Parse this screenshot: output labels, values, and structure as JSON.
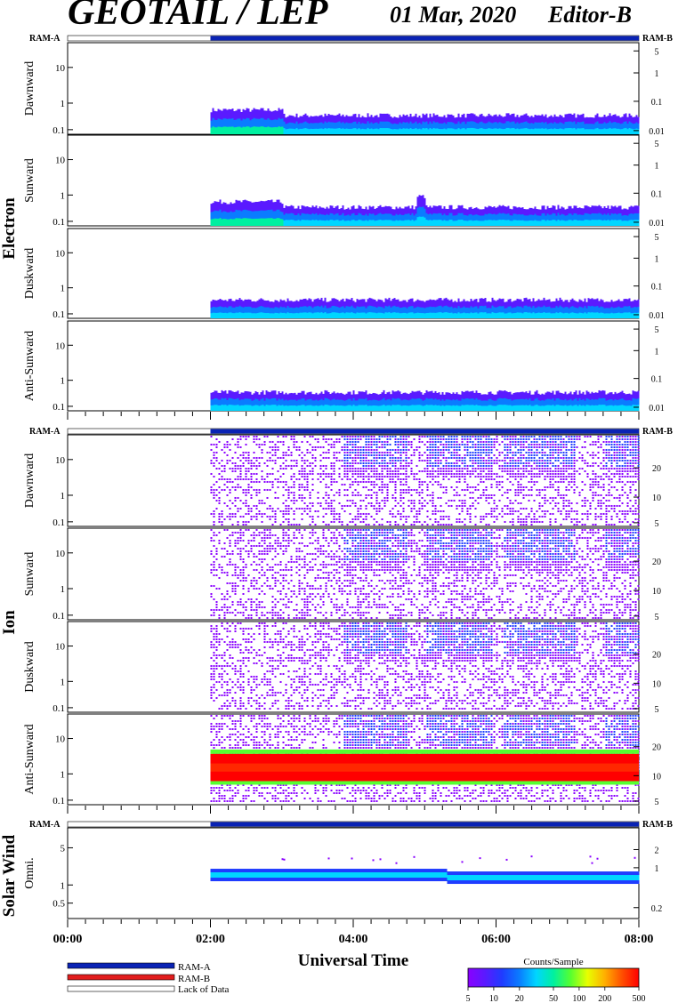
{
  "header": {
    "title": "GEOTAIL / LEP",
    "date": "01 Mar, 2020",
    "editor": "Editor-B"
  },
  "colors": {
    "ram_a": "#0a23b4",
    "ram_b": "#e21d1d",
    "lack_of_data": "#ffffff",
    "colorbar": [
      "#8a00ff",
      "#5a1aff",
      "#1f3cff",
      "#0a7cff",
      "#00d6ff",
      "#00f0a0",
      "#56ff30",
      "#e8ff00",
      "#ffb000",
      "#ff5000",
      "#ff0000"
    ]
  },
  "legend": {
    "ram_a": "RAM-A",
    "ram_b": "RAM-B",
    "lack": "Lack of Data"
  },
  "colorbar": {
    "title": "Counts/Sample",
    "ticks": [
      "5",
      "10",
      "20",
      "50",
      "100",
      "200",
      "500"
    ]
  },
  "chart_data": {
    "type": "heatmap",
    "xlabel": "Universal Time",
    "x_ticks": [
      "00:00",
      "02:00",
      "04:00",
      "06:00",
      "08:00"
    ],
    "x_range": [
      "00:00",
      "08:00"
    ],
    "data_start": "02:00",
    "ram_a_label": "RAM-A",
    "ram_b_label": "RAM-B",
    "groups": [
      {
        "name": "Electron",
        "left_ticks": [
          "10",
          "1",
          "0.1"
        ],
        "right_ticks": [
          "5",
          "1",
          "0.1",
          "0.01"
        ],
        "panels": [
          {
            "label": "Dawnward"
          },
          {
            "label": "Sunward"
          },
          {
            "label": "Duskward"
          },
          {
            "label": "Anti-Sunward"
          }
        ]
      },
      {
        "name": "Ion",
        "left_ticks": [
          "10",
          "1",
          "0.1"
        ],
        "right_ticks": [
          "20",
          "10",
          "5"
        ],
        "panels": [
          {
            "label": "Dawnward"
          },
          {
            "label": "Sunward"
          },
          {
            "label": "Duskward"
          },
          {
            "label": "Anti-Sunward"
          }
        ]
      },
      {
        "name": "Solar Wind",
        "left_ticks": [
          "5",
          "1",
          "0.5"
        ],
        "right_ticks": [
          "2",
          "1",
          "0.2"
        ],
        "panels": [
          {
            "label": "Omni."
          }
        ]
      }
    ]
  }
}
